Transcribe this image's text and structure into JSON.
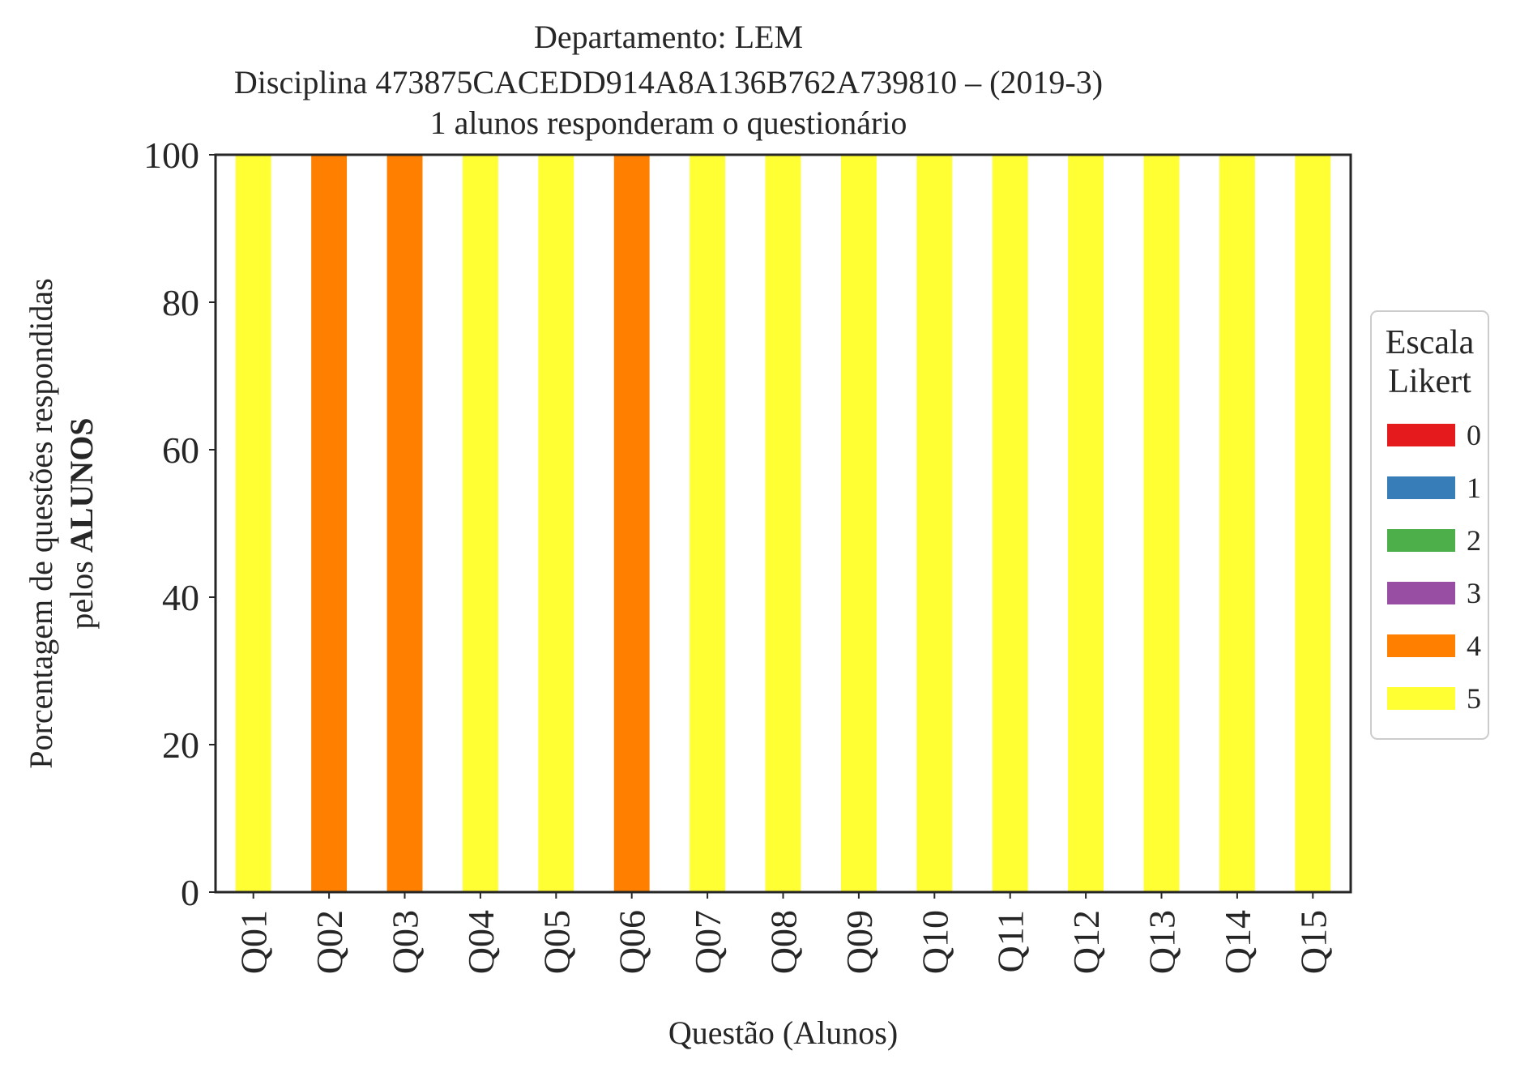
{
  "chart_data": {
    "type": "bar",
    "stacked": true,
    "title_lines": [
      "Departamento: LEM",
      "Disciplina 473875CACEDD914A8A136B762A739810 – (2019-3)",
      "1 alunos responderam o questionário"
    ],
    "xlabel": "Questão (Alunos)",
    "ylabel_line1": "Porcentagem de questões respondidas",
    "ylabel_line2_prefix": "pelos ",
    "ylabel_line2_bold": "ALUNOS",
    "ylim": [
      0,
      100
    ],
    "yticks": [
      "0",
      "20",
      "40",
      "60",
      "80",
      "100"
    ],
    "grid": false,
    "categories": [
      "Q01",
      "Q02",
      "Q03",
      "Q04",
      "Q05",
      "Q06",
      "Q07",
      "Q08",
      "Q09",
      "Q10",
      "Q11",
      "Q12",
      "Q13",
      "Q14",
      "Q15"
    ],
    "legend": {
      "title_line1": "Escala",
      "title_line2": "Likert",
      "placement": "center-right-outside"
    },
    "series": [
      {
        "name": "0",
        "color": "#e41a1c",
        "values": [
          0,
          0,
          0,
          0,
          0,
          0,
          0,
          0,
          0,
          0,
          0,
          0,
          0,
          0,
          0
        ]
      },
      {
        "name": "1",
        "color": "#377eb8",
        "values": [
          0,
          0,
          0,
          0,
          0,
          0,
          0,
          0,
          0,
          0,
          0,
          0,
          0,
          0,
          0
        ]
      },
      {
        "name": "2",
        "color": "#4daf4a",
        "values": [
          0,
          0,
          0,
          0,
          0,
          0,
          0,
          0,
          0,
          0,
          0,
          0,
          0,
          0,
          0
        ]
      },
      {
        "name": "3",
        "color": "#984ea3",
        "values": [
          0,
          0,
          0,
          0,
          0,
          0,
          0,
          0,
          0,
          0,
          0,
          0,
          0,
          0,
          0
        ]
      },
      {
        "name": "4",
        "color": "#ff7f00",
        "values": [
          0,
          100,
          100,
          0,
          0,
          100,
          0,
          0,
          0,
          0,
          0,
          0,
          0,
          0,
          0
        ]
      },
      {
        "name": "5",
        "color": "#ffff33",
        "values": [
          100,
          0,
          0,
          100,
          100,
          0,
          100,
          100,
          100,
          100,
          100,
          100,
          100,
          100,
          100
        ]
      }
    ]
  }
}
